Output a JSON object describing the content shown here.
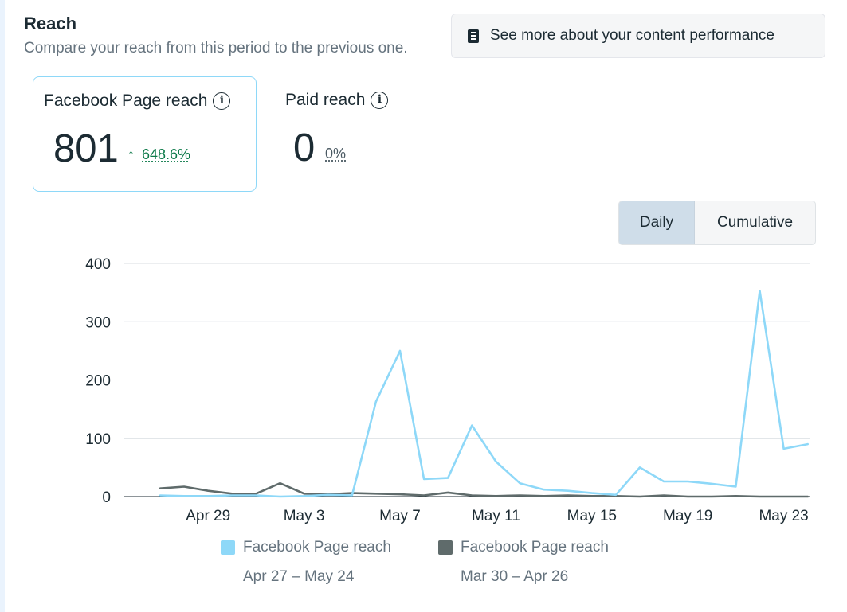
{
  "header": {
    "title": "Reach",
    "subtitle": "Compare your reach from this period to the previous one.",
    "more_button": "See more about your content performance"
  },
  "metrics": [
    {
      "label": "Facebook Page reach",
      "value": "801",
      "change": "648.6%",
      "trend": "up"
    },
    {
      "label": "Paid reach",
      "value": "0",
      "change": "0%"
    }
  ],
  "toggle": {
    "daily": "Daily",
    "cumulative": "Cumulative",
    "selected": "Daily"
  },
  "colors": {
    "current": "#8ed8f8",
    "previous": "#67788a",
    "grid": "#d8dde2"
  },
  "chart_data": {
    "type": "line",
    "ylim": [
      0,
      400
    ],
    "y_ticks": [
      "0",
      "100",
      "200",
      "300",
      "400"
    ],
    "x_tick_labels": [
      "Apr 29",
      "May 3",
      "May 7",
      "May 11",
      "May 15",
      "May 19",
      "May 23"
    ],
    "x_tick_index": [
      2,
      6,
      10,
      14,
      18,
      22,
      26
    ],
    "series": [
      {
        "name": "Facebook Page reach",
        "range": "Apr 27 – May 24",
        "values": [
          2,
          1,
          1,
          2,
          2,
          0,
          1,
          3,
          2,
          163,
          250,
          30,
          32,
          122,
          60,
          23,
          12,
          10,
          6,
          3,
          50,
          26,
          26,
          22,
          17,
          353,
          82,
          90
        ]
      },
      {
        "name": "Facebook Page reach",
        "range": "Mar 30 – Apr 26",
        "values": [
          14,
          17,
          10,
          5,
          5,
          23,
          5,
          4,
          6,
          5,
          4,
          2,
          7,
          2,
          1,
          2,
          1,
          2,
          1,
          1,
          0,
          2,
          0,
          0,
          1,
          0,
          0,
          0
        ]
      }
    ]
  }
}
